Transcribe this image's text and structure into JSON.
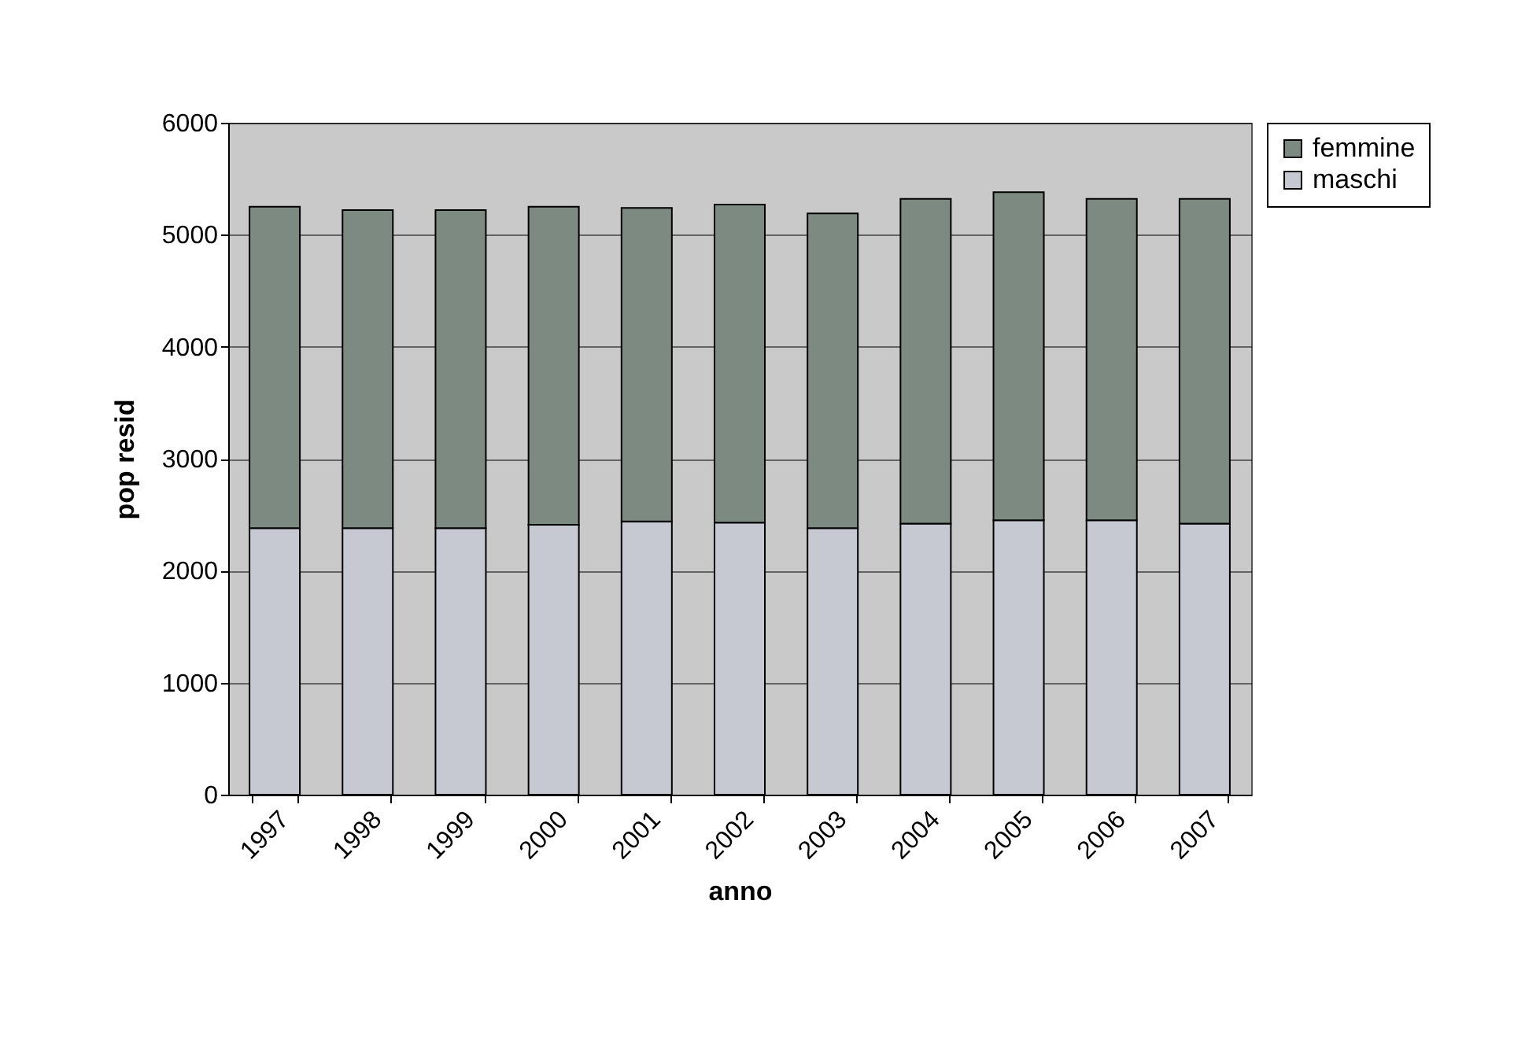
{
  "chart_data": {
    "type": "bar",
    "stacked": true,
    "xlabel": "anno",
    "ylabel": "pop resid",
    "categories": [
      "1997",
      "1998",
      "1999",
      "2000",
      "2001",
      "2002",
      "2003",
      "2004",
      "2005",
      "2006",
      "2007"
    ],
    "series": [
      {
        "name": "maschi",
        "color": "#c6c9d2",
        "values": [
          2380,
          2380,
          2380,
          2410,
          2440,
          2430,
          2380,
          2420,
          2450,
          2450,
          2420
        ]
      },
      {
        "name": "femmine",
        "color": "#7d8a82",
        "values": [
          2870,
          2840,
          2840,
          2840,
          2800,
          2840,
          2810,
          2900,
          2930,
          2870,
          2900
        ]
      }
    ],
    "ylim": [
      0,
      6000
    ],
    "yticks": [
      0,
      1000,
      2000,
      3000,
      4000,
      5000,
      6000
    ],
    "grid": "y",
    "legend": "right"
  }
}
